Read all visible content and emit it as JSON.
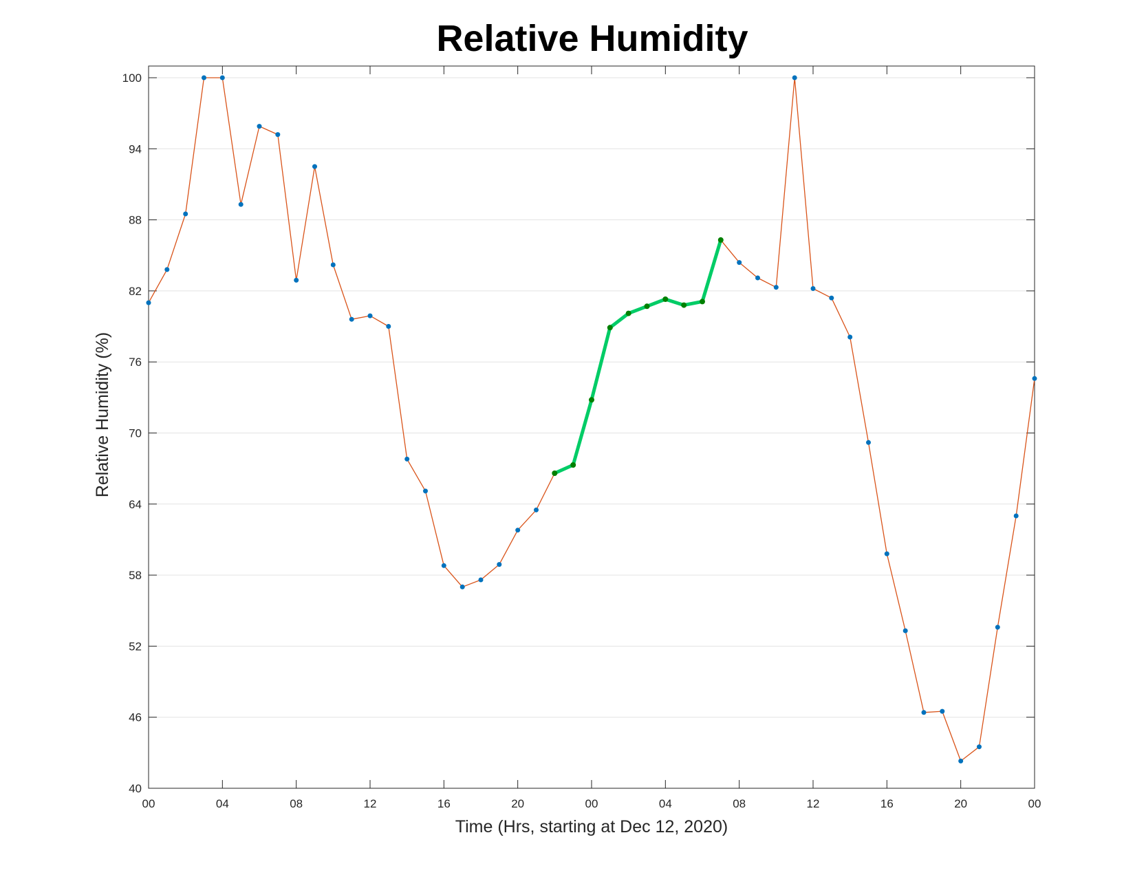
{
  "chart_data": {
    "type": "line",
    "title": "Relative Humidity",
    "xlabel": "Time (Hrs, starting at Dec 12, 2020)",
    "ylabel": "Relative Humidity (%)",
    "ylim": [
      40,
      100
    ],
    "yticks": [
      40,
      46,
      52,
      58,
      64,
      70,
      76,
      82,
      88,
      94,
      100
    ],
    "xlim": [
      "2020-12-12 00:00",
      "2020-12-14 00:00"
    ],
    "xticks": [
      {
        "time": "2020-12-12 00:00",
        "label": "00"
      },
      {
        "time": "2020-12-12 04:00",
        "label": "04"
      },
      {
        "time": "2020-12-12 08:00",
        "label": "08"
      },
      {
        "time": "2020-12-12 12:00",
        "label": "12"
      },
      {
        "time": "2020-12-12 16:00",
        "label": "16"
      },
      {
        "time": "2020-12-12 20:00",
        "label": "20"
      },
      {
        "time": "2020-12-13 00:00",
        "label": "00"
      },
      {
        "time": "2020-12-13 04:00",
        "label": "04"
      },
      {
        "time": "2020-12-13 08:00",
        "label": "08"
      },
      {
        "time": "2020-12-13 12:00",
        "label": "12"
      },
      {
        "time": "2020-12-13 16:00",
        "label": "16"
      },
      {
        "time": "2020-12-13 20:00",
        "label": "20"
      },
      {
        "time": "2020-12-14 00:00",
        "label": "00"
      }
    ],
    "grid": "horizontal",
    "series": [
      {
        "style": "thin line with dot markers",
        "color": "#d95319",
        "marker_color": "#0072bd",
        "x": [
          "2020-12-12 00:00",
          "2020-12-12 01:00",
          "2020-12-12 02:00",
          "2020-12-12 03:00",
          "2020-12-12 04:00",
          "2020-12-12 05:00",
          "2020-12-12 06:00",
          "2020-12-12 07:00",
          "2020-12-12 08:00",
          "2020-12-12 09:00",
          "2020-12-12 10:00",
          "2020-12-12 11:00",
          "2020-12-12 12:00",
          "2020-12-12 13:00",
          "2020-12-12 14:00",
          "2020-12-12 15:00",
          "2020-12-12 16:00",
          "2020-12-12 17:00",
          "2020-12-12 18:00",
          "2020-12-12 19:00",
          "2020-12-12 20:00",
          "2020-12-12 21:00",
          "2020-12-12 22:00",
          "2020-12-12 23:00",
          "2020-12-13 00:00",
          "2020-12-13 01:00",
          "2020-12-13 02:00",
          "2020-12-13 03:00",
          "2020-12-13 04:00",
          "2020-12-13 05:00",
          "2020-12-13 06:00",
          "2020-12-13 07:00",
          "2020-12-13 08:00",
          "2020-12-13 09:00",
          "2020-12-13 10:00",
          "2020-12-13 11:00",
          "2020-12-13 12:00",
          "2020-12-13 13:00",
          "2020-12-13 14:00",
          "2020-12-13 15:00",
          "2020-12-13 16:00",
          "2020-12-13 17:00",
          "2020-12-13 18:00",
          "2020-12-13 19:00",
          "2020-12-13 20:00",
          "2020-12-13 21:00",
          "2020-12-13 22:00",
          "2020-12-13 23:00",
          "2020-12-14 00:00"
        ],
        "y": [
          81.0,
          83.8,
          88.5,
          100.0,
          100.0,
          89.3,
          95.9,
          95.2,
          82.9,
          92.5,
          84.2,
          79.6,
          79.9,
          79.0,
          67.8,
          65.1,
          58.8,
          57.0,
          57.6,
          58.9,
          61.8,
          63.5,
          66.6,
          67.3,
          72.8,
          78.9,
          80.1,
          80.7,
          81.3,
          80.8,
          81.1,
          86.3,
          84.4,
          83.1,
          82.3,
          100.0,
          82.2,
          81.4,
          78.1,
          69.2,
          59.8,
          53.3,
          46.4,
          46.5,
          42.3,
          43.5,
          53.6,
          63.0,
          74.6
        ]
      },
      {
        "style": "thick line with dot markers",
        "color": "#00cc66",
        "marker_color": "#008000",
        "x": [
          "2020-12-12 22:00",
          "2020-12-12 23:00",
          "2020-12-13 00:00",
          "2020-12-13 01:00",
          "2020-12-13 02:00",
          "2020-12-13 03:00",
          "2020-12-13 04:00",
          "2020-12-13 05:00",
          "2020-12-13 06:00",
          "2020-12-13 07:00"
        ],
        "y": [
          66.6,
          67.3,
          72.8,
          78.9,
          80.1,
          80.7,
          81.3,
          80.8,
          81.1,
          86.3
        ]
      }
    ]
  }
}
